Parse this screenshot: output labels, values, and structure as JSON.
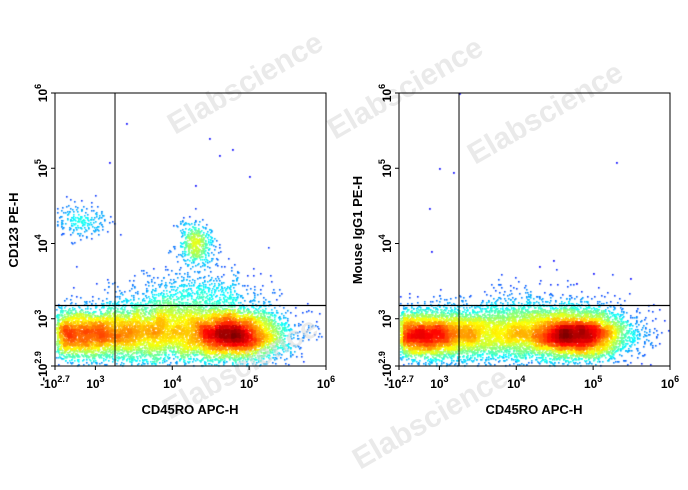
{
  "watermark": "Elabscience",
  "chart_data": [
    {
      "type": "scatter",
      "style": "flow cytometry density dot plot (pseudocolor)",
      "title": "",
      "xlabel": "CD45RO APC-H",
      "ylabel": "CD123 PE-H",
      "x_scale": "biexponential",
      "y_scale": "biexponential",
      "xlim": [
        -501,
        1000000
      ],
      "ylim": [
        -794,
        1000000
      ],
      "x_ticks": [
        {
          "value": -501,
          "base": "-10",
          "exp": "2.7"
        },
        {
          "value": 1000,
          "base": "10",
          "exp": "3"
        },
        {
          "value": 10000,
          "base": "10",
          "exp": "4"
        },
        {
          "value": 100000,
          "base": "10",
          "exp": "5"
        },
        {
          "value": 1000000,
          "base": "10",
          "exp": "6"
        }
      ],
      "y_ticks": [
        {
          "value": -794,
          "base": "-10",
          "exp": "2.9"
        },
        {
          "value": 1000,
          "base": "10",
          "exp": "3"
        },
        {
          "value": 10000,
          "base": "10",
          "exp": "4"
        },
        {
          "value": 100000,
          "base": "10",
          "exp": "5"
        },
        {
          "value": 1000000,
          "base": "10",
          "exp": "6"
        }
      ],
      "gate_x": 1800,
      "gate_y": 1500,
      "grid": false,
      "populations": [
        {
          "x": 300,
          "y": 420,
          "spread_x": 0.55,
          "spread_y": 0.17,
          "weight": 0.35
        },
        {
          "x": 60000,
          "y": 400,
          "spread_x": 0.35,
          "spread_y": 0.17,
          "weight": 0.33
        },
        {
          "x": 6000,
          "y": 550,
          "spread_x": 0.4,
          "spread_y": 0.22,
          "weight": 0.17
        },
        {
          "x": 20000,
          "y": 1500,
          "spread_x": 0.45,
          "spread_y": 0.25,
          "weight": 0.08
        },
        {
          "x": 20000,
          "y": 10000,
          "spread_x": 0.12,
          "spread_y": 0.14,
          "weight": 0.035
        },
        {
          "x": 500,
          "y": 20000,
          "spread_x": 0.18,
          "spread_y": 0.12,
          "weight": 0.015
        }
      ],
      "outliers": [
        [
          2500,
          400000
        ],
        [
          1500,
          120000
        ],
        [
          40000,
          150000
        ],
        [
          20000,
          60000
        ],
        [
          60000,
          180000
        ],
        [
          100000,
          80000
        ],
        [
          30000,
          250000
        ]
      ]
    },
    {
      "type": "scatter",
      "style": "flow cytometry density dot plot (pseudocolor)",
      "title": "",
      "xlabel": "CD45RO APC-H",
      "ylabel": "Mouse IgG1 PE-H",
      "x_scale": "biexponential",
      "y_scale": "biexponential",
      "xlim": [
        -501,
        1000000
      ],
      "ylim": [
        -794,
        1000000
      ],
      "x_ticks": [
        {
          "value": -501,
          "base": "-10",
          "exp": "2.7"
        },
        {
          "value": 1000,
          "base": "10",
          "exp": "3"
        },
        {
          "value": 10000,
          "base": "10",
          "exp": "4"
        },
        {
          "value": 100000,
          "base": "10",
          "exp": "5"
        },
        {
          "value": 1000000,
          "base": "10",
          "exp": "6"
        }
      ],
      "y_ticks": [
        {
          "value": -794,
          "base": "-10",
          "exp": "2.9"
        },
        {
          "value": 1000,
          "base": "10",
          "exp": "3"
        },
        {
          "value": 10000,
          "base": "10",
          "exp": "4"
        },
        {
          "value": 100000,
          "base": "10",
          "exp": "5"
        },
        {
          "value": 1000000,
          "base": "10",
          "exp": "6"
        }
      ],
      "gate_x": 1800,
      "gate_y": 1500,
      "grid": false,
      "populations": [
        {
          "x": 300,
          "y": 420,
          "spread_x": 0.45,
          "spread_y": 0.16,
          "weight": 0.4
        },
        {
          "x": 60000,
          "y": 420,
          "spread_x": 0.35,
          "spread_y": 0.16,
          "weight": 0.38
        },
        {
          "x": 8000,
          "y": 500,
          "spread_x": 0.45,
          "spread_y": 0.2,
          "weight": 0.2
        },
        {
          "x": 20000,
          "y": 1300,
          "spread_x": 0.5,
          "spread_y": 0.2,
          "weight": 0.02
        }
      ],
      "outliers": [
        [
          1000,
          100000
        ],
        [
          1500,
          90000
        ],
        [
          600,
          30000
        ],
        [
          700,
          8000
        ],
        [
          1800,
          1000000
        ],
        [
          20000,
          5000
        ],
        [
          100000,
          4000
        ],
        [
          30000,
          6000
        ],
        [
          60000,
          3000
        ],
        [
          300000,
          3500
        ],
        [
          200000,
          120000
        ]
      ]
    }
  ]
}
